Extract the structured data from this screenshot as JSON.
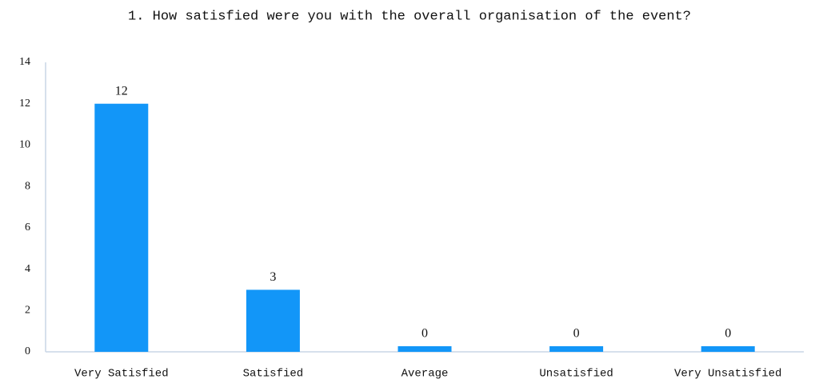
{
  "chart_data": {
    "type": "bar",
    "title": "1. How satisfied were you with the overall organisation of the event?",
    "categories": [
      "Very Satisfied",
      "Satisfied",
      "Average",
      "Unsatisfied",
      "Very Unsatisfied"
    ],
    "values": [
      12,
      3,
      0,
      0,
      0
    ],
    "color": "#1296f8",
    "ylim": [
      0,
      14
    ],
    "yticks": [
      0,
      2,
      4,
      6,
      8,
      10,
      12,
      14
    ],
    "grid": false
  }
}
